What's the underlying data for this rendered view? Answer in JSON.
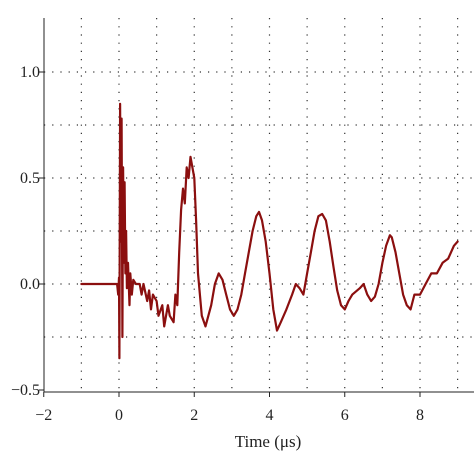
{
  "chart_data": {
    "type": "line",
    "title": "",
    "xlabel": "Time (μs)",
    "ylabel": "",
    "xlim": [
      -2,
      9.5
    ],
    "ylim": [
      -0.5,
      1.22
    ],
    "grid": true,
    "grid_style": "dotted",
    "x_ticks": [
      -2,
      0,
      2,
      4,
      6,
      8
    ],
    "x_tick_labels": [
      "−2",
      "0",
      "2",
      "4",
      "6",
      "8"
    ],
    "y_ticks": [
      -0.5,
      0.0,
      0.5,
      1.0
    ],
    "y_tick_labels": [
      "−0.5",
      "0.0",
      "0.5",
      "1.0"
    ],
    "series": [
      {
        "color": "#8b0f0f",
        "x": [
          -1.0,
          -0.3,
          -0.05,
          -0.02,
          0.0,
          0.01,
          0.03,
          0.05,
          0.07,
          0.09,
          0.11,
          0.13,
          0.15,
          0.17,
          0.19,
          0.21,
          0.24,
          0.28,
          0.3,
          0.34,
          0.38,
          0.45,
          0.55,
          0.6,
          0.65,
          0.75,
          0.8,
          0.85,
          0.9,
          1.0,
          1.05,
          1.15,
          1.2,
          1.3,
          1.35,
          1.45,
          1.5,
          1.55,
          1.6,
          1.65,
          1.7,
          1.75,
          1.8,
          1.85,
          1.9,
          1.95,
          2.0,
          2.05,
          2.1,
          2.2,
          2.3,
          2.45,
          2.55,
          2.65,
          2.75,
          2.85,
          2.95,
          3.05,
          3.15,
          3.25,
          3.35,
          3.45,
          3.55,
          3.65,
          3.72,
          3.8,
          3.9,
          4.0,
          4.1,
          4.2,
          4.3,
          4.45,
          4.6,
          4.7,
          4.8,
          4.9,
          5.0,
          5.1,
          5.2,
          5.3,
          5.4,
          5.5,
          5.6,
          5.7,
          5.8,
          5.9,
          6.0,
          6.1,
          6.2,
          6.4,
          6.5,
          6.6,
          6.7,
          6.8,
          6.9,
          7.0,
          7.1,
          7.2,
          7.25,
          7.35,
          7.45,
          7.55,
          7.65,
          7.75,
          7.85,
          8.0,
          8.15,
          8.3,
          8.45,
          8.6,
          8.75,
          8.9,
          9.0
        ],
        "y": [
          0.0,
          0.0,
          0.0,
          -0.05,
          0.03,
          -0.35,
          0.85,
          0.2,
          0.78,
          -0.25,
          0.55,
          0.1,
          0.48,
          0.05,
          0.25,
          -0.02,
          0.1,
          -0.1,
          0.05,
          -0.05,
          0.02,
          0.0,
          0.0,
          -0.05,
          0.0,
          -0.08,
          -0.03,
          -0.12,
          -0.05,
          -0.08,
          -0.15,
          -0.1,
          -0.2,
          -0.1,
          -0.15,
          -0.18,
          -0.05,
          -0.1,
          0.15,
          0.35,
          0.45,
          0.38,
          0.55,
          0.5,
          0.6,
          0.55,
          0.5,
          0.3,
          0.05,
          -0.15,
          -0.2,
          -0.1,
          0.0,
          0.05,
          0.02,
          -0.05,
          -0.12,
          -0.15,
          -0.12,
          -0.05,
          0.05,
          0.15,
          0.25,
          0.32,
          0.34,
          0.3,
          0.2,
          0.05,
          -0.12,
          -0.22,
          -0.18,
          -0.12,
          -0.05,
          0.0,
          -0.02,
          -0.05,
          0.05,
          0.15,
          0.25,
          0.32,
          0.33,
          0.3,
          0.2,
          0.08,
          -0.03,
          -0.1,
          -0.12,
          -0.08,
          -0.05,
          -0.02,
          0.0,
          -0.05,
          -0.08,
          -0.06,
          0.0,
          0.1,
          0.18,
          0.23,
          0.22,
          0.15,
          0.05,
          -0.05,
          -0.1,
          -0.12,
          -0.05,
          -0.05,
          0.0,
          0.05,
          0.05,
          0.1,
          0.12,
          0.18,
          0.2
        ]
      }
    ]
  }
}
